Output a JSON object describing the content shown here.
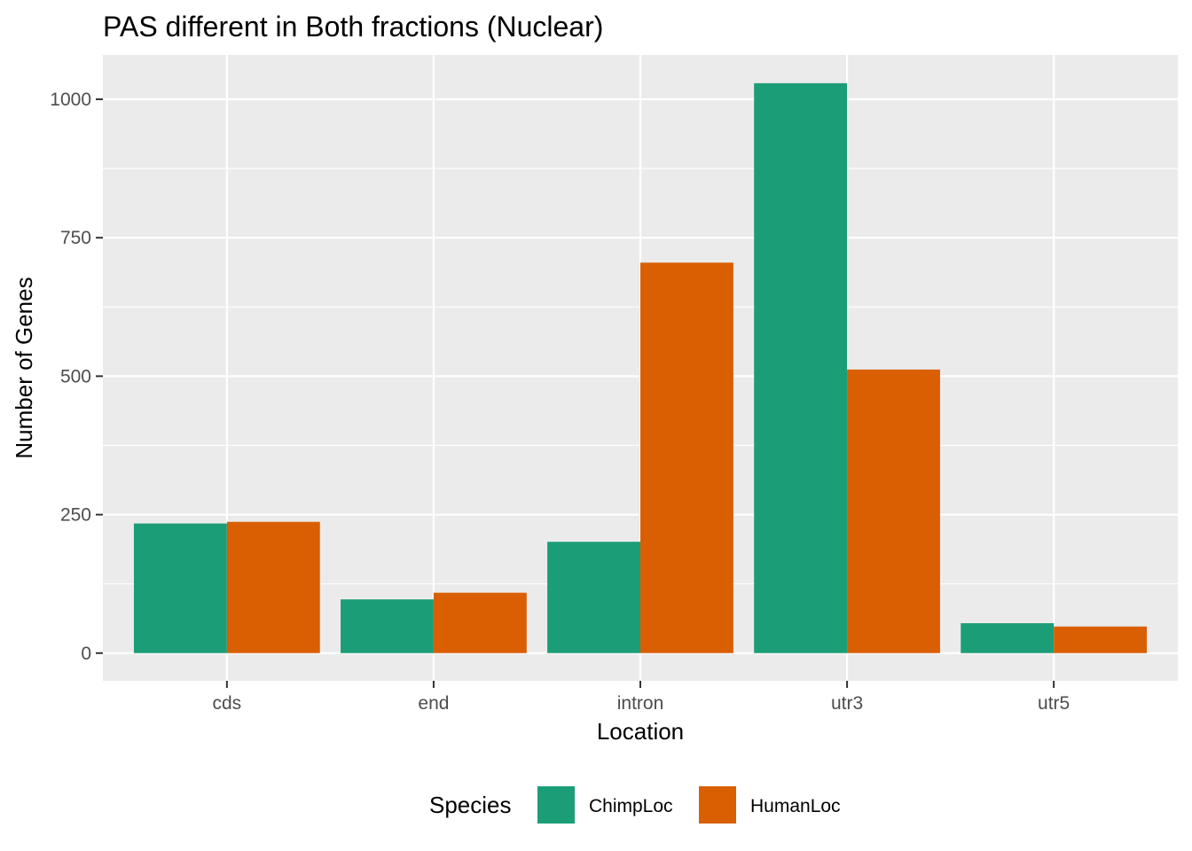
{
  "chart_data": {
    "type": "bar",
    "title": "PAS different in Both fractions (Nuclear)",
    "xlabel": "Location",
    "ylabel": "Number of Genes",
    "categories": [
      "cds",
      "end",
      "intron",
      "utr3",
      "utr5"
    ],
    "series": [
      {
        "name": "ChimpLoc",
        "color": "#1b9e77",
        "values": [
          234,
          97,
          201,
          1029,
          54
        ]
      },
      {
        "name": "HumanLoc",
        "color": "#d95f02",
        "values": [
          237,
          109,
          705,
          512,
          48
        ]
      }
    ],
    "ylim": [
      -50,
      1080
    ],
    "yticks": [
      0,
      250,
      500,
      750,
      1000
    ],
    "grid": true,
    "background": "#ebebeb",
    "legend": {
      "title": "Species",
      "position": "bottom"
    }
  }
}
